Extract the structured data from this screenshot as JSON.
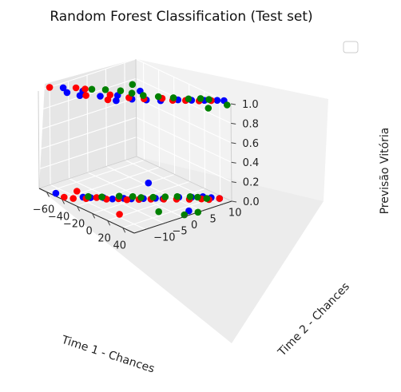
{
  "chart_data": {
    "type": "scatter",
    "title": "Random Forest Classification (Test set)",
    "xlabel": "Time 1 - Chances",
    "ylabel": "Time 2 - Chances",
    "zlabel": "Previsão Vitória",
    "x_ticks": [
      "−60",
      "−40",
      "−20",
      "0",
      "20",
      "40"
    ],
    "y_ticks": [
      "−10",
      "−5",
      "0",
      "5",
      "10"
    ],
    "z_ticks": [
      "0.0",
      "0.2",
      "0.4",
      "0.6",
      "0.8",
      "1.0"
    ],
    "xlim": [
      -70,
      55
    ],
    "ylim": [
      -13,
      13
    ],
    "zlim": [
      0,
      1
    ],
    "grid": true,
    "legend": "top-right (empty)",
    "series": [
      {
        "color": "#0000ff",
        "points": [
          [
            -53,
            -12,
            0
          ],
          [
            -32,
            -9,
            0
          ],
          [
            -27,
            -8,
            0
          ],
          [
            -20,
            -6,
            0
          ],
          [
            -13,
            -5,
            0
          ],
          [
            -8,
            -3,
            0
          ],
          [
            -3,
            -2,
            0
          ],
          [
            3,
            0,
            0
          ],
          [
            9,
            2,
            0
          ],
          [
            14,
            3,
            0
          ],
          [
            20,
            6,
            0
          ],
          [
            27,
            8,
            0
          ],
          [
            32,
            10,
            0
          ],
          [
            38,
            11,
            0
          ],
          [
            44,
            12,
            0
          ],
          [
            -20,
            6,
            0
          ],
          [
            48,
            3,
            0
          ],
          [
            -62,
            -8,
            1
          ],
          [
            -52,
            -9,
            1
          ],
          [
            -46,
            -6,
            1
          ],
          [
            -40,
            -8,
            1
          ],
          [
            -28,
            -5,
            1
          ],
          [
            -20,
            -2,
            1
          ],
          [
            -12,
            -4,
            1
          ],
          [
            -6,
            -1,
            1
          ],
          [
            3,
            1,
            1
          ],
          [
            12,
            3,
            1
          ],
          [
            20,
            6,
            1
          ],
          [
            28,
            8,
            1
          ],
          [
            35,
            10,
            1
          ],
          [
            42,
            12,
            1
          ],
          [
            46,
            13,
            1
          ],
          [
            -15,
            3,
            1
          ]
        ]
      },
      {
        "color": "#ff0000",
        "points": [
          [
            -42,
            -12,
            0
          ],
          [
            -35,
            -11,
            0
          ],
          [
            -28,
            -9,
            0
          ],
          [
            -24,
            -7,
            0
          ],
          [
            -16,
            -6,
            0
          ],
          [
            -10,
            -4,
            0
          ],
          [
            -4,
            -3,
            0
          ],
          [
            2,
            -1,
            0
          ],
          [
            8,
            1,
            0
          ],
          [
            15,
            3,
            0
          ],
          [
            22,
            5,
            0
          ],
          [
            29,
            7,
            0
          ],
          [
            35,
            9,
            0
          ],
          [
            40,
            10,
            0
          ],
          [
            16,
            -9,
            0
          ],
          [
            -45,
            -8,
            0
          ],
          [
            44,
            12,
            0
          ],
          [
            -70,
            -10,
            1
          ],
          [
            -55,
            -6,
            1
          ],
          [
            -48,
            -5,
            1
          ],
          [
            -37,
            -7,
            1
          ],
          [
            -25,
            -3,
            1
          ],
          [
            -18,
            -5,
            1
          ],
          [
            -10,
            -1,
            1
          ],
          [
            0,
            1,
            1
          ],
          [
            9,
            4,
            1
          ],
          [
            18,
            5,
            1
          ],
          [
            25,
            7,
            1
          ],
          [
            33,
            9,
            1
          ],
          [
            39,
            11,
            1
          ]
        ]
      },
      {
        "color": "#008000",
        "points": [
          [
            -30,
            -8,
            0
          ],
          [
            -22,
            -6,
            0
          ],
          [
            -14,
            -3,
            0
          ],
          [
            -6,
            -1,
            0
          ],
          [
            0,
            0,
            0
          ],
          [
            6,
            2,
            0
          ],
          [
            12,
            4,
            0
          ],
          [
            18,
            6,
            0
          ],
          [
            25,
            8,
            0
          ],
          [
            30,
            9,
            0
          ],
          [
            37,
            10,
            0
          ],
          [
            33,
            -2,
            0
          ],
          [
            52,
            1,
            0
          ],
          [
            55,
            4,
            0
          ],
          [
            -44,
            -4,
            1
          ],
          [
            -36,
            -2,
            1
          ],
          [
            -26,
            0,
            1
          ],
          [
            -16,
            1,
            1
          ],
          [
            -6,
            2,
            1
          ],
          [
            4,
            4,
            1
          ],
          [
            14,
            6,
            1
          ],
          [
            24,
            8,
            1
          ],
          [
            30,
            10,
            1
          ],
          [
            36,
            11,
            1
          ],
          [
            50,
            8,
            1
          ],
          [
            55,
            12,
            1
          ],
          [
            -30,
            4,
            1
          ]
        ]
      }
    ]
  }
}
